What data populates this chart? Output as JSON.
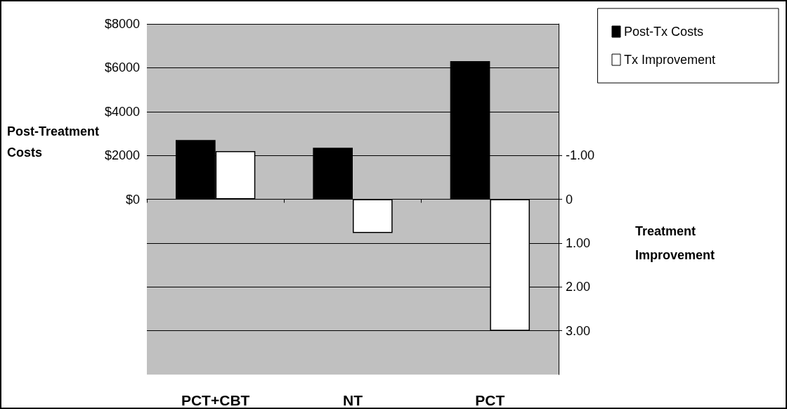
{
  "chart_data": {
    "type": "bar",
    "categories": [
      "PCT+CBT",
      "NT",
      "PCT"
    ],
    "series": [
      {
        "name": "Post-Tx Costs",
        "color": "#000000",
        "values": [
          2700,
          2350,
          6300
        ]
      },
      {
        "name": "Tx Improvement",
        "color": "#ffffff",
        "axis": "y2",
        "values": [
          -1.1,
          0.77,
          3.0
        ]
      }
    ],
    "ylabel": "Post-Treatment Costs",
    "y2label": "Treatment Improvement",
    "ylim": [
      -8000,
      8000
    ],
    "yticks": [
      {
        "value": 0,
        "label": "$0"
      },
      {
        "value": 2000,
        "label": "$2000"
      },
      {
        "value": 4000,
        "label": "$4000"
      },
      {
        "value": 6000,
        "label": "$6000"
      },
      {
        "value": 8000,
        "label": "$8000"
      }
    ],
    "y2lim": [
      4,
      -4
    ],
    "y2ticks": [
      {
        "value": -1,
        "label": "-1.00"
      },
      {
        "value": 0,
        "label": "0"
      },
      {
        "value": 1,
        "label": "1.00"
      },
      {
        "value": 2,
        "label": "2.00"
      },
      {
        "value": 3,
        "label": "3.00"
      }
    ],
    "grid": true,
    "legend": "top right"
  }
}
